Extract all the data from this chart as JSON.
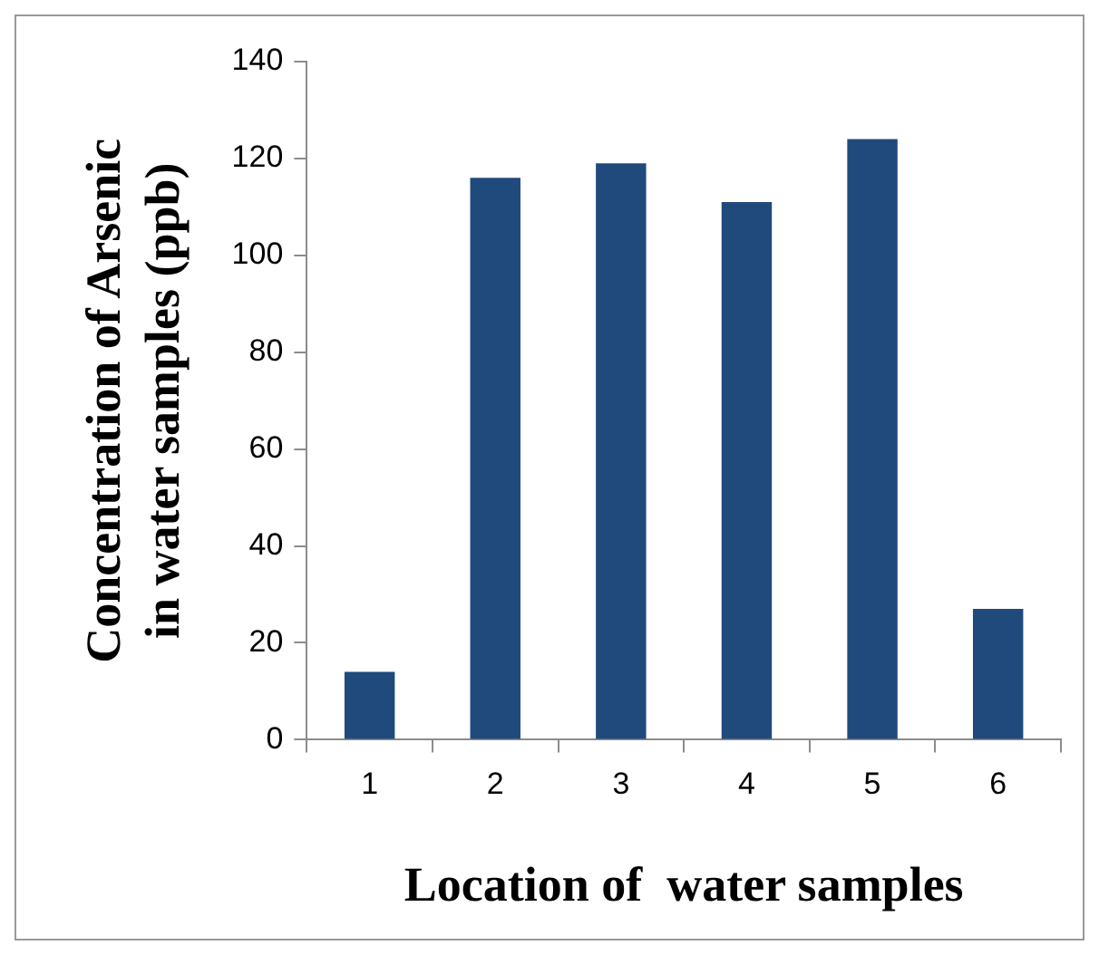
{
  "chart_data": {
    "type": "bar",
    "xlabel": "Location of  water samples",
    "ylabel": "Concentration of Arsenic in water samples (ppb)",
    "categories": [
      "1",
      "2",
      "3",
      "4",
      "5",
      "6"
    ],
    "values": [
      14,
      116,
      119,
      111,
      124,
      27
    ],
    "color": "#214a7c",
    "ylim": [
      0,
      140
    ],
    "yticks": [
      0,
      20,
      40,
      60,
      80,
      100,
      120,
      140
    ],
    "grid": false,
    "legend": false
  }
}
